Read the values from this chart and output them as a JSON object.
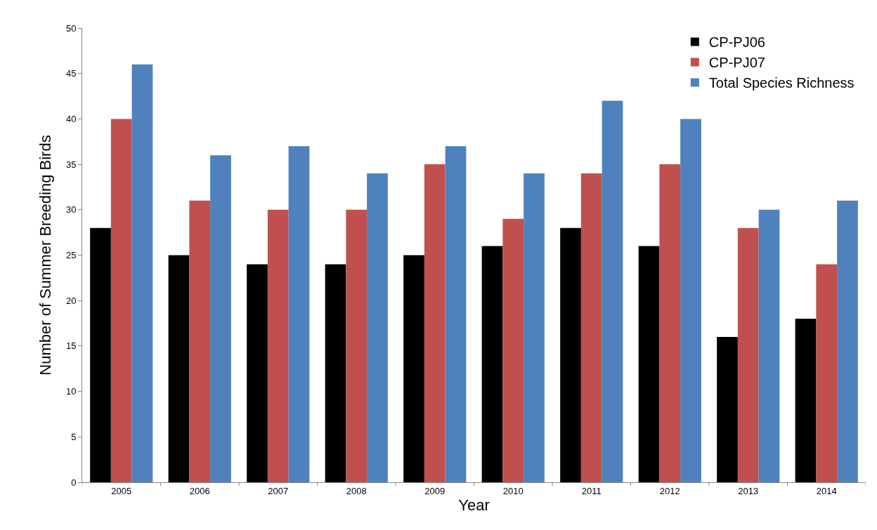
{
  "chart_data": {
    "type": "bar",
    "xlabel": "Year",
    "ylabel": "Number of Summer Breeding Birds",
    "categories": [
      "2005",
      "2006",
      "2007",
      "2008",
      "2009",
      "2010",
      "2011",
      "2012",
      "2013",
      "2014"
    ],
    "series": [
      {
        "name": "CP-PJ06",
        "color": "#000000",
        "values": [
          28,
          25,
          24,
          24,
          25,
          26,
          28,
          26,
          16,
          18
        ]
      },
      {
        "name": "CP-PJ07",
        "color": "#c0504d",
        "values": [
          40,
          31,
          30,
          30,
          35,
          29,
          34,
          35,
          28,
          24
        ]
      },
      {
        "name": "Total Species Richness",
        "color": "#4f81bd",
        "values": [
          46,
          36,
          37,
          34,
          37,
          34,
          42,
          40,
          30,
          31
        ]
      }
    ],
    "ylim": [
      0,
      50
    ],
    "yticks": [
      0,
      5,
      10,
      15,
      20,
      25,
      30,
      35,
      40,
      45,
      50
    ],
    "legend": "top right"
  }
}
